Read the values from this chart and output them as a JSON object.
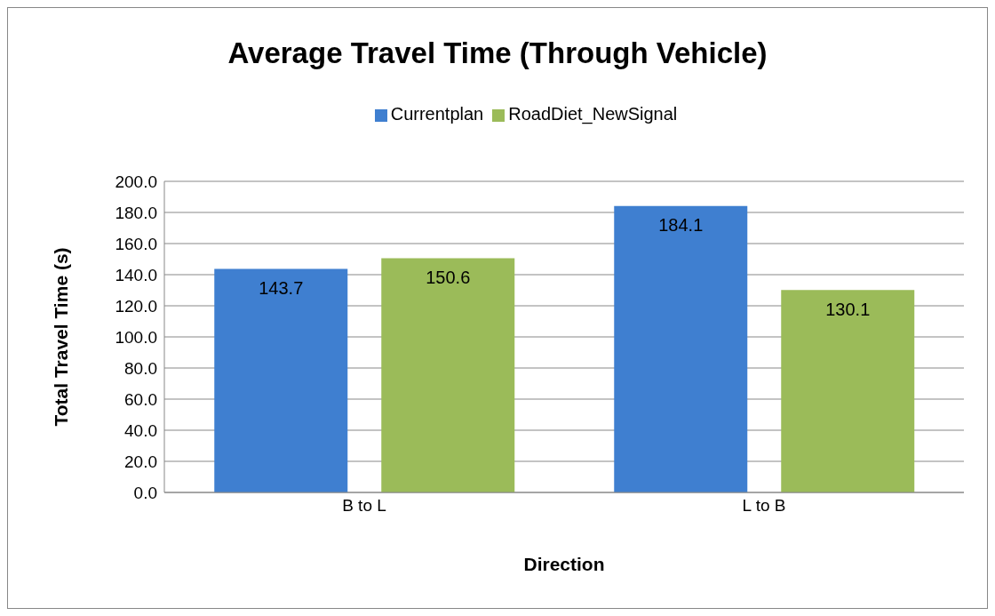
{
  "chart_data": {
    "type": "bar",
    "title": "Average Travel Time (Through Vehicle)",
    "xlabel": "Direction",
    "ylabel": "Total Travel Time (s)",
    "categories": [
      "B to L",
      "L to B"
    ],
    "series": [
      {
        "name": "Currentplan",
        "color": "#3f7fd0",
        "values": [
          143.7,
          184.1
        ]
      },
      {
        "name": "RoadDiet_NewSignal",
        "color": "#9bbb59",
        "values": [
          150.6,
          130.1
        ]
      }
    ],
    "ylim": [
      0,
      200
    ],
    "yticks": [
      {
        "value": 0,
        "label": "0.0"
      },
      {
        "value": 20,
        "label": "20.0"
      },
      {
        "value": 40,
        "label": "40.0"
      },
      {
        "value": 60,
        "label": "60.0"
      },
      {
        "value": 80,
        "label": "80.0"
      },
      {
        "value": 100,
        "label": "100.0"
      },
      {
        "value": 120,
        "label": "120.0"
      },
      {
        "value": 140,
        "label": "140.0"
      },
      {
        "value": 160,
        "label": "160.0"
      },
      {
        "value": 180,
        "label": "180.0"
      },
      {
        "value": 200,
        "label": "200.0"
      }
    ],
    "grid": "y",
    "legend": "top",
    "data_labels": true
  }
}
